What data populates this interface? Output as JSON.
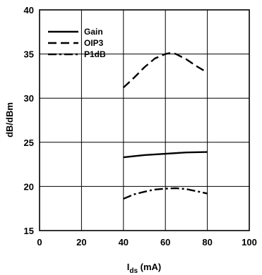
{
  "chart_data": {
    "type": "line",
    "title": "",
    "xlabel": "I_ds (mA)",
    "xlabel_main": "I",
    "xlabel_sub": "ds",
    "xlabel_unit": " (mA)",
    "ylabel": "dB/dBm",
    "xlim": [
      0,
      100
    ],
    "ylim": [
      15,
      40
    ],
    "xticks": [
      0,
      20,
      40,
      60,
      80,
      100
    ],
    "yticks": [
      15,
      20,
      25,
      30,
      35,
      40
    ],
    "grid": true,
    "legend_position": "top-left",
    "series": [
      {
        "name": "Gain",
        "style": "solid",
        "x": [
          40,
          50,
          60,
          70,
          80
        ],
        "y": [
          23.3,
          23.55,
          23.7,
          23.85,
          23.9
        ]
      },
      {
        "name": "OIP3",
        "style": "dashed",
        "x": [
          40,
          45,
          50,
          55,
          60,
          63,
          65,
          70,
          75,
          80
        ],
        "y": [
          31.2,
          32.3,
          33.5,
          34.5,
          35.0,
          35.15,
          35.0,
          34.4,
          33.6,
          32.9
        ]
      },
      {
        "name": "P1dB",
        "style": "dashdot",
        "x": [
          40,
          45,
          50,
          55,
          60,
          65,
          70,
          75,
          80
        ],
        "y": [
          18.6,
          19.1,
          19.4,
          19.65,
          19.75,
          19.8,
          19.7,
          19.45,
          19.2
        ]
      }
    ]
  }
}
